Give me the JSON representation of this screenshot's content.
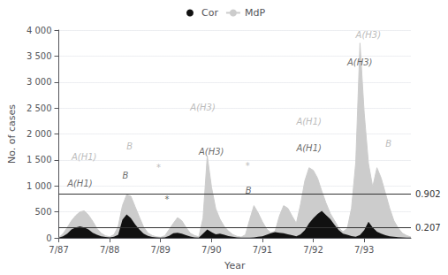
{
  "chart_data": {
    "type": "area",
    "xlabel": "Year",
    "ylabel": "No. of cases",
    "categories": [
      "7/87",
      null,
      null,
      null,
      null,
      null,
      null,
      null,
      null,
      null,
      null,
      null,
      "7/88",
      null,
      null,
      null,
      null,
      null,
      null,
      null,
      null,
      null,
      null,
      null,
      "7/89",
      null,
      null,
      null,
      null,
      null,
      null,
      null,
      null,
      null,
      null,
      null,
      "7/90",
      null,
      null,
      null,
      null,
      null,
      null,
      null,
      null,
      null,
      null,
      null,
      "7/91",
      null,
      null,
      null,
      null,
      null,
      null,
      null,
      null,
      null,
      null,
      null,
      "7/92",
      null,
      null,
      null,
      null,
      null,
      null,
      null,
      null,
      null,
      null,
      null,
      "7/93",
      null,
      null,
      null,
      null,
      null,
      null,
      null,
      null,
      null,
      null,
      null
    ],
    "series": [
      {
        "name": "Cor",
        "color": "#111111",
        "values": [
          5,
          30,
          80,
          160,
          200,
          220,
          200,
          160,
          100,
          60,
          30,
          15,
          10,
          20,
          60,
          350,
          450,
          380,
          260,
          160,
          80,
          40,
          15,
          8,
          5,
          10,
          40,
          90,
          100,
          80,
          50,
          25,
          10,
          5,
          80,
          160,
          110,
          70,
          80,
          60,
          35,
          20,
          8,
          3,
          3,
          3,
          8,
          20,
          30,
          60,
          90,
          110,
          100,
          90,
          70,
          50,
          30,
          70,
          150,
          280,
          380,
          460,
          520,
          440,
          360,
          250,
          150,
          80,
          60,
          35,
          20,
          55,
          150,
          310,
          200,
          120,
          80,
          50,
          30,
          20,
          12,
          8,
          4,
          3
        ]
      },
      {
        "name": "MdP",
        "color": "#cccccc",
        "values": [
          5,
          80,
          200,
          330,
          430,
          500,
          520,
          440,
          320,
          180,
          90,
          40,
          20,
          60,
          220,
          620,
          830,
          800,
          600,
          400,
          210,
          95,
          45,
          20,
          12,
          40,
          160,
          280,
          390,
          330,
          200,
          90,
          45,
          20,
          380,
          1580,
          980,
          560,
          360,
          220,
          130,
          65,
          30,
          15,
          60,
          350,
          620,
          480,
          310,
          170,
          100,
          130,
          420,
          620,
          570,
          420,
          280,
          650,
          1100,
          1350,
          1300,
          1150,
          900,
          670,
          470,
          330,
          190,
          120,
          180,
          570,
          1450,
          3750,
          2400,
          1430,
          980,
          1350,
          1150,
          860,
          570,
          330,
          190,
          90,
          45,
          15
        ]
      }
    ],
    "ylim": [
      0,
      4000
    ],
    "yticks": [
      0,
      500,
      {
        "value": 1000,
        "label": "1 000"
      },
      {
        "value": 1500,
        "label": "1 500"
      },
      {
        "value": 2000,
        "label": "2 000"
      },
      {
        "value": 2500,
        "label": "2 500"
      },
      {
        "value": 3000,
        "label": "3 000"
      },
      {
        "value": 3500,
        "label": "3 500"
      },
      {
        "value": 4000,
        "label": "4 000"
      }
    ],
    "grid": true,
    "legend": "top",
    "hlines": [
      {
        "y": 844,
        "text": "0.902",
        "color": "#333333"
      },
      {
        "y": 193,
        "text": "0.207",
        "color": "#333333"
      }
    ],
    "annotations": [
      {
        "text": "A(H1)",
        "x": 3,
        "y": 1470,
        "color": "#aaaaaa"
      },
      {
        "text": "A(H1)",
        "x": 2,
        "y": 960,
        "color": "#444444"
      },
      {
        "text": "B",
        "x": 16,
        "y": 1680,
        "color": "#aaaaaa"
      },
      {
        "text": "B",
        "x": 15,
        "y": 1120,
        "color": "#444444"
      },
      {
        "text": "*",
        "x": 23,
        "y": 1260,
        "color": "#aaaaaa"
      },
      {
        "text": "*",
        "x": 25,
        "y": 650,
        "color": "#444444"
      },
      {
        "text": "A(H3)",
        "x": 33,
        "y": 1580,
        "color": "#444444"
      },
      {
        "text": "A(H3)",
        "x": 31,
        "y": 2430,
        "color": "#aaaaaa"
      },
      {
        "text": "*",
        "x": 44,
        "y": 1310,
        "color": "#aaaaaa"
      },
      {
        "text": "B",
        "x": 44,
        "y": 820,
        "color": "#444444"
      },
      {
        "text": "A(H1)",
        "x": 56,
        "y": 2150,
        "color": "#aaaaaa"
      },
      {
        "text": "A(H1)",
        "x": 56,
        "y": 1650,
        "color": "#444444"
      },
      {
        "text": "A(H3)",
        "x": 70,
        "y": 3820,
        "color": "#aaaaaa"
      },
      {
        "text": "A(H3)",
        "x": 68,
        "y": 3300,
        "color": "#444444"
      },
      {
        "text": "B",
        "x": 77,
        "y": 1720,
        "color": "#aaaaaa"
      }
    ]
  }
}
